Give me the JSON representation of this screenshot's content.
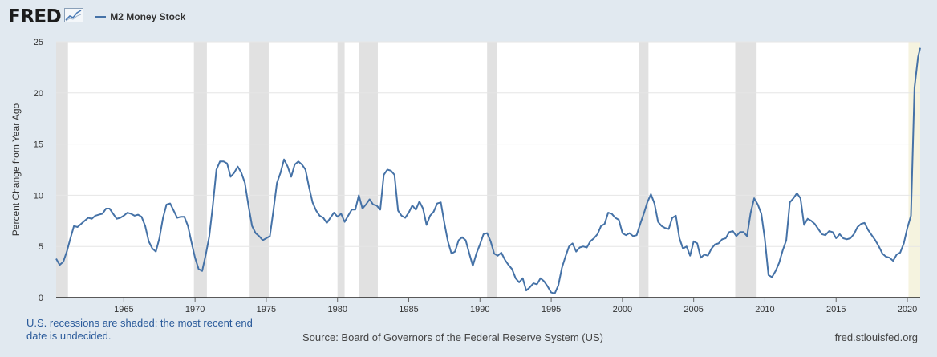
{
  "header": {
    "logo_text": "FRED",
    "logo_icon": "chart-line-icon"
  },
  "chart_data": {
    "type": "line",
    "title": "",
    "ylabel": "Percent Change from Year Ago",
    "xlabel": "",
    "xlim": [
      1960.25,
      2020.9
    ],
    "ylim": [
      0,
      25
    ],
    "y_ticks": [
      0,
      5,
      10,
      15,
      20,
      25
    ],
    "x_ticks": [
      1965,
      1970,
      1975,
      1980,
      1985,
      1990,
      1995,
      2000,
      2005,
      2010,
      2015,
      2020
    ],
    "grid": "horizontal",
    "legend_position": "top-left",
    "series": [
      {
        "name": "M2 Money Stock",
        "color": "#4572a7",
        "points": [
          [
            1960.25,
            3.8
          ],
          [
            1960.5,
            3.2
          ],
          [
            1960.75,
            3.5
          ],
          [
            1961,
            4.5
          ],
          [
            1961.25,
            5.8
          ],
          [
            1961.5,
            7.0
          ],
          [
            1961.75,
            6.9
          ],
          [
            1962,
            7.2
          ],
          [
            1962.25,
            7.5
          ],
          [
            1962.5,
            7.8
          ],
          [
            1962.75,
            7.7
          ],
          [
            1963,
            8.0
          ],
          [
            1963.25,
            8.1
          ],
          [
            1963.5,
            8.2
          ],
          [
            1963.75,
            8.7
          ],
          [
            1964,
            8.7
          ],
          [
            1964.25,
            8.2
          ],
          [
            1964.5,
            7.7
          ],
          [
            1964.75,
            7.8
          ],
          [
            1965,
            8.0
          ],
          [
            1965.25,
            8.3
          ],
          [
            1965.5,
            8.2
          ],
          [
            1965.75,
            8.0
          ],
          [
            1966,
            8.1
          ],
          [
            1966.25,
            7.9
          ],
          [
            1966.5,
            7.0
          ],
          [
            1966.75,
            5.5
          ],
          [
            1967,
            4.8
          ],
          [
            1967.25,
            4.5
          ],
          [
            1967.5,
            5.8
          ],
          [
            1967.75,
            7.8
          ],
          [
            1968,
            9.1
          ],
          [
            1968.25,
            9.2
          ],
          [
            1968.5,
            8.5
          ],
          [
            1968.75,
            7.8
          ],
          [
            1969,
            7.9
          ],
          [
            1969.25,
            7.9
          ],
          [
            1969.5,
            7.0
          ],
          [
            1969.75,
            5.4
          ],
          [
            1970,
            3.9
          ],
          [
            1970.25,
            2.8
          ],
          [
            1970.5,
            2.6
          ],
          [
            1970.75,
            4.2
          ],
          [
            1971,
            6.0
          ],
          [
            1971.25,
            9.0
          ],
          [
            1971.5,
            12.5
          ],
          [
            1971.75,
            13.3
          ],
          [
            1972,
            13.3
          ],
          [
            1972.25,
            13.1
          ],
          [
            1972.5,
            11.8
          ],
          [
            1972.75,
            12.2
          ],
          [
            1973,
            12.8
          ],
          [
            1973.25,
            12.2
          ],
          [
            1973.5,
            11.2
          ],
          [
            1973.75,
            9.0
          ],
          [
            1974,
            7.0
          ],
          [
            1974.25,
            6.3
          ],
          [
            1974.5,
            6.0
          ],
          [
            1974.75,
            5.6
          ],
          [
            1975,
            5.8
          ],
          [
            1975.25,
            6.0
          ],
          [
            1975.5,
            8.5
          ],
          [
            1975.75,
            11.2
          ],
          [
            1976,
            12.2
          ],
          [
            1976.25,
            13.5
          ],
          [
            1976.5,
            12.8
          ],
          [
            1976.75,
            11.8
          ],
          [
            1977,
            13.0
          ],
          [
            1977.25,
            13.3
          ],
          [
            1977.5,
            13.0
          ],
          [
            1977.75,
            12.5
          ],
          [
            1978,
            10.8
          ],
          [
            1978.25,
            9.3
          ],
          [
            1978.5,
            8.5
          ],
          [
            1978.75,
            8.0
          ],
          [
            1979,
            7.8
          ],
          [
            1979.25,
            7.3
          ],
          [
            1979.5,
            7.8
          ],
          [
            1979.75,
            8.3
          ],
          [
            1980,
            7.9
          ],
          [
            1980.25,
            8.2
          ],
          [
            1980.5,
            7.4
          ],
          [
            1980.75,
            8.0
          ],
          [
            1981,
            8.6
          ],
          [
            1981.25,
            8.6
          ],
          [
            1981.5,
            10.0
          ],
          [
            1981.75,
            8.7
          ],
          [
            1982,
            9.1
          ],
          [
            1982.25,
            9.6
          ],
          [
            1982.5,
            9.1
          ],
          [
            1982.75,
            9.0
          ],
          [
            1983,
            8.6
          ],
          [
            1983.25,
            12.0
          ],
          [
            1983.5,
            12.5
          ],
          [
            1983.75,
            12.4
          ],
          [
            1984,
            12.0
          ],
          [
            1984.25,
            8.5
          ],
          [
            1984.5,
            8.0
          ],
          [
            1984.75,
            7.8
          ],
          [
            1985,
            8.3
          ],
          [
            1985.25,
            9.0
          ],
          [
            1985.5,
            8.6
          ],
          [
            1985.75,
            9.4
          ],
          [
            1986,
            8.7
          ],
          [
            1986.25,
            7.1
          ],
          [
            1986.5,
            8.0
          ],
          [
            1986.75,
            8.4
          ],
          [
            1987,
            9.2
          ],
          [
            1987.25,
            9.3
          ],
          [
            1987.5,
            7.3
          ],
          [
            1987.75,
            5.5
          ],
          [
            1988,
            4.3
          ],
          [
            1988.25,
            4.5
          ],
          [
            1988.5,
            5.6
          ],
          [
            1988.75,
            5.9
          ],
          [
            1989,
            5.6
          ],
          [
            1989.25,
            4.3
          ],
          [
            1989.5,
            3.1
          ],
          [
            1989.75,
            4.3
          ],
          [
            1990,
            5.2
          ],
          [
            1990.25,
            6.2
          ],
          [
            1990.5,
            6.3
          ],
          [
            1990.75,
            5.5
          ],
          [
            1991,
            4.3
          ],
          [
            1991.25,
            4.1
          ],
          [
            1991.5,
            4.4
          ],
          [
            1991.75,
            3.7
          ],
          [
            1992,
            3.2
          ],
          [
            1992.25,
            2.8
          ],
          [
            1992.5,
            1.9
          ],
          [
            1992.75,
            1.5
          ],
          [
            1993,
            1.9
          ],
          [
            1993.25,
            0.7
          ],
          [
            1993.5,
            1.0
          ],
          [
            1993.75,
            1.4
          ],
          [
            1994,
            1.3
          ],
          [
            1994.25,
            1.9
          ],
          [
            1994.5,
            1.6
          ],
          [
            1994.75,
            1.1
          ],
          [
            1995,
            0.5
          ],
          [
            1995.25,
            0.4
          ],
          [
            1995.5,
            1.2
          ],
          [
            1995.75,
            2.9
          ],
          [
            1996,
            4.0
          ],
          [
            1996.25,
            5.0
          ],
          [
            1996.5,
            5.3
          ],
          [
            1996.75,
            4.5
          ],
          [
            1997,
            4.9
          ],
          [
            1997.25,
            5.0
          ],
          [
            1997.5,
            4.9
          ],
          [
            1997.75,
            5.5
          ],
          [
            1998,
            5.8
          ],
          [
            1998.25,
            6.2
          ],
          [
            1998.5,
            7.0
          ],
          [
            1998.75,
            7.2
          ],
          [
            1999,
            8.3
          ],
          [
            1999.25,
            8.2
          ],
          [
            1999.5,
            7.8
          ],
          [
            1999.75,
            7.6
          ],
          [
            2000,
            6.3
          ],
          [
            2000.25,
            6.1
          ],
          [
            2000.5,
            6.3
          ],
          [
            2000.75,
            6.0
          ],
          [
            2001,
            6.1
          ],
          [
            2001.25,
            7.2
          ],
          [
            2001.5,
            8.2
          ],
          [
            2001.75,
            9.3
          ],
          [
            2002,
            10.1
          ],
          [
            2002.25,
            9.2
          ],
          [
            2002.5,
            7.4
          ],
          [
            2002.75,
            7.0
          ],
          [
            2003,
            6.8
          ],
          [
            2003.25,
            6.7
          ],
          [
            2003.5,
            7.8
          ],
          [
            2003.75,
            8.0
          ],
          [
            2004,
            5.8
          ],
          [
            2004.25,
            4.8
          ],
          [
            2004.5,
            5.0
          ],
          [
            2004.75,
            4.1
          ],
          [
            2005,
            5.5
          ],
          [
            2005.25,
            5.3
          ],
          [
            2005.5,
            3.9
          ],
          [
            2005.75,
            4.2
          ],
          [
            2006,
            4.1
          ],
          [
            2006.25,
            4.8
          ],
          [
            2006.5,
            5.2
          ],
          [
            2006.75,
            5.3
          ],
          [
            2007,
            5.7
          ],
          [
            2007.25,
            5.8
          ],
          [
            2007.5,
            6.4
          ],
          [
            2007.75,
            6.5
          ],
          [
            2008,
            6.0
          ],
          [
            2008.25,
            6.4
          ],
          [
            2008.5,
            6.4
          ],
          [
            2008.75,
            6.0
          ],
          [
            2009,
            8.3
          ],
          [
            2009.25,
            9.7
          ],
          [
            2009.5,
            9.1
          ],
          [
            2009.75,
            8.2
          ],
          [
            2010,
            5.7
          ],
          [
            2010.25,
            2.2
          ],
          [
            2010.5,
            2.0
          ],
          [
            2010.75,
            2.6
          ],
          [
            2011,
            3.4
          ],
          [
            2011.25,
            4.6
          ],
          [
            2011.5,
            5.6
          ],
          [
            2011.75,
            9.3
          ],
          [
            2012,
            9.7
          ],
          [
            2012.25,
            10.2
          ],
          [
            2012.5,
            9.7
          ],
          [
            2012.75,
            7.1
          ],
          [
            2013,
            7.7
          ],
          [
            2013.25,
            7.5
          ],
          [
            2013.5,
            7.2
          ],
          [
            2013.75,
            6.7
          ],
          [
            2014,
            6.2
          ],
          [
            2014.25,
            6.1
          ],
          [
            2014.5,
            6.5
          ],
          [
            2014.75,
            6.4
          ],
          [
            2015,
            5.8
          ],
          [
            2015.25,
            6.2
          ],
          [
            2015.5,
            5.8
          ],
          [
            2015.75,
            5.7
          ],
          [
            2016,
            5.8
          ],
          [
            2016.25,
            6.2
          ],
          [
            2016.5,
            6.9
          ],
          [
            2016.75,
            7.2
          ],
          [
            2017,
            7.3
          ],
          [
            2017.25,
            6.6
          ],
          [
            2017.5,
            6.1
          ],
          [
            2017.75,
            5.6
          ],
          [
            2018,
            5.0
          ],
          [
            2018.25,
            4.3
          ],
          [
            2018.5,
            4.0
          ],
          [
            2018.75,
            3.9
          ],
          [
            2019,
            3.6
          ],
          [
            2019.25,
            4.2
          ],
          [
            2019.5,
            4.4
          ],
          [
            2019.75,
            5.3
          ],
          [
            2020,
            6.8
          ],
          [
            2020.25,
            8.0
          ],
          [
            2020.5,
            20.5
          ],
          [
            2020.75,
            23.5
          ],
          [
            2020.9,
            24.4
          ]
        ]
      }
    ],
    "recessions": [
      [
        1960.25,
        1961.08
      ],
      [
        1969.92,
        1970.83
      ],
      [
        1973.83,
        1975.17
      ],
      [
        1980.0,
        1980.5
      ],
      [
        1981.5,
        1982.83
      ],
      [
        1990.5,
        1991.17
      ],
      [
        2001.17,
        2001.83
      ],
      [
        2007.92,
        2009.42
      ],
      [
        2020.08,
        2020.9
      ]
    ],
    "recession_color": "#e1e1e1",
    "current_recession_color": "#f5f3df"
  },
  "footer": {
    "note": "U.S. recessions are shaded; the most recent end date is undecided.",
    "source": "Source: Board of Governors of the Federal Reserve System (US)",
    "url": "fred.stlouisfed.org"
  }
}
